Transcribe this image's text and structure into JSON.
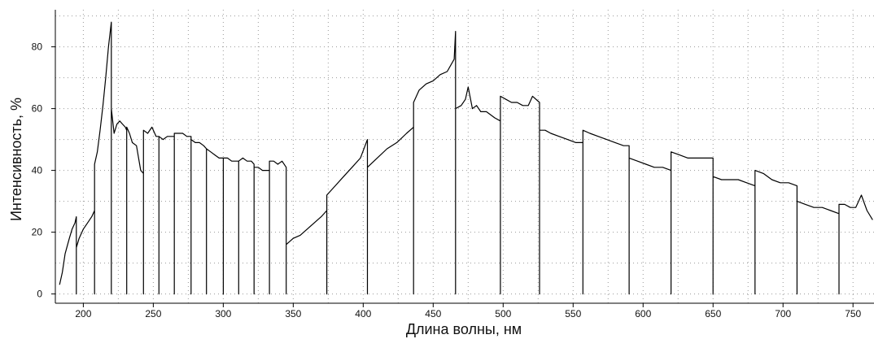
{
  "chart_data": {
    "type": "line",
    "title": "",
    "xlabel": "Длина волны, нм",
    "ylabel": "Интенсивность, %",
    "xlim": [
      180,
      765
    ],
    "ylim": [
      -3,
      92
    ],
    "grid": true,
    "grid_style": "dotted",
    "x_ticks": [
      200,
      250,
      300,
      350,
      400,
      450,
      500,
      550,
      600,
      650,
      700,
      750
    ],
    "y_ticks": [
      0,
      20,
      40,
      60,
      80
    ],
    "line_color": "#000000",
    "grid_color": "#9a9a9a",
    "segments": [
      {
        "x": [
          183,
          185,
          187,
          190,
          192,
          194,
          195
        ],
        "y": [
          3,
          7,
          13,
          18,
          21,
          23,
          25
        ]
      },
      {
        "x": [
          195,
          197,
          200,
          203,
          206,
          208
        ],
        "y": [
          15,
          18,
          21,
          23,
          25,
          27
        ]
      },
      {
        "x": [
          208,
          210,
          212,
          214,
          216,
          218,
          220
        ],
        "y": [
          42,
          46,
          53,
          61,
          70,
          80,
          88
        ]
      },
      {
        "x": [
          220,
          222,
          224,
          226,
          228,
          230,
          231
        ],
        "y": [
          60,
          52,
          55,
          56,
          55,
          54,
          53
        ]
      },
      {
        "x": [
          231,
          233,
          235,
          238,
          241,
          243
        ],
        "y": [
          54,
          52,
          49,
          48,
          40,
          39
        ]
      },
      {
        "x": [
          243,
          246,
          249,
          252,
          254
        ],
        "y": [
          53,
          52,
          54,
          51,
          51
        ]
      },
      {
        "x": [
          254,
          257,
          260,
          263,
          265
        ],
        "y": [
          51,
          50,
          51,
          51,
          51
        ]
      },
      {
        "x": [
          265,
          268,
          271,
          274,
          277
        ],
        "y": [
          52,
          52,
          52,
          51,
          51
        ]
      },
      {
        "x": [
          277,
          280,
          283,
          286,
          288
        ],
        "y": [
          50,
          49,
          49,
          48,
          47
        ]
      },
      {
        "x": [
          288,
          291,
          294,
          297,
          300
        ],
        "y": [
          47,
          46,
          45,
          44,
          44
        ]
      },
      {
        "x": [
          300,
          303,
          306,
          309,
          311
        ],
        "y": [
          44,
          44,
          43,
          43,
          43
        ]
      },
      {
        "x": [
          311,
          314,
          317,
          320,
          322
        ],
        "y": [
          43,
          44,
          43,
          43,
          42
        ]
      },
      {
        "x": [
          322,
          325,
          328,
          331,
          333
        ],
        "y": [
          41,
          41,
          40,
          40,
          40
        ]
      },
      {
        "x": [
          333,
          336,
          339,
          342,
          345
        ],
        "y": [
          43,
          43,
          42,
          43,
          41
        ]
      },
      {
        "x": [
          345,
          350,
          355,
          360,
          365,
          370,
          374
        ],
        "y": [
          16,
          18,
          19,
          21,
          23,
          25,
          27
        ]
      },
      {
        "x": [
          374,
          380,
          386,
          392,
          398,
          403
        ],
        "y": [
          32,
          35,
          38,
          41,
          44,
          50
        ]
      },
      {
        "x": [
          403,
          410,
          417,
          424,
          431,
          436
        ],
        "y": [
          41,
          44,
          47,
          49,
          52,
          54
        ]
      },
      {
        "x": [
          436,
          440,
          445,
          450,
          455,
          460,
          465,
          466
        ],
        "y": [
          62,
          66,
          68,
          69,
          71,
          72,
          76,
          85
        ]
      },
      {
        "x": [
          466,
          470,
          473,
          475,
          478,
          481,
          484,
          488,
          494,
          498
        ],
        "y": [
          60,
          61,
          63,
          67,
          60,
          61,
          59,
          59,
          57,
          56
        ]
      },
      {
        "x": [
          498,
          502,
          506,
          510,
          514,
          518,
          521,
          526
        ],
        "y": [
          64,
          63,
          62,
          62,
          61,
          61,
          64,
          62
        ]
      },
      {
        "x": [
          526,
          530,
          534,
          540,
          546,
          552,
          557
        ],
        "y": [
          53,
          53,
          52,
          51,
          50,
          49,
          49
        ]
      },
      {
        "x": [
          557,
          562,
          568,
          574,
          580,
          586,
          590
        ],
        "y": [
          53,
          52,
          51,
          50,
          49,
          48,
          48
        ]
      },
      {
        "x": [
          590,
          596,
          602,
          608,
          614,
          620
        ],
        "y": [
          44,
          43,
          42,
          41,
          41,
          40
        ]
      },
      {
        "x": [
          620,
          626,
          632,
          638,
          644,
          650
        ],
        "y": [
          46,
          45,
          44,
          44,
          44,
          44
        ]
      },
      {
        "x": [
          650,
          656,
          662,
          668,
          674,
          680
        ],
        "y": [
          38,
          37,
          37,
          37,
          36,
          35
        ]
      },
      {
        "x": [
          680,
          686,
          692,
          698,
          704,
          710
        ],
        "y": [
          40,
          39,
          37,
          36,
          36,
          35
        ]
      },
      {
        "x": [
          710,
          716,
          722,
          728,
          734,
          740
        ],
        "y": [
          30,
          29,
          28,
          28,
          27,
          26
        ]
      },
      {
        "x": [
          740,
          744,
          748,
          752,
          756,
          760,
          764
        ],
        "y": [
          29,
          29,
          28,
          28,
          32,
          27,
          24
        ]
      }
    ]
  }
}
